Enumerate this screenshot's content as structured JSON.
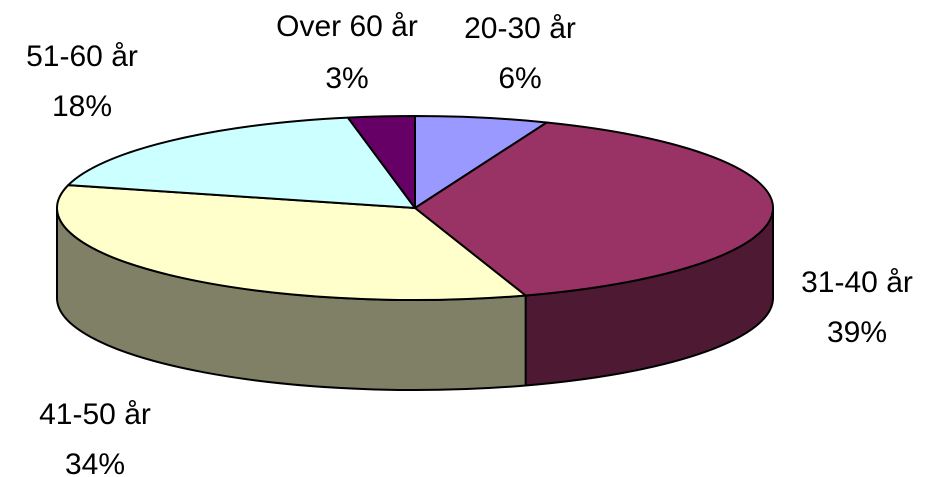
{
  "chart_data": {
    "type": "pie",
    "title": "",
    "style": "3d-exploded-none",
    "slices": [
      {
        "label": "20-30 år",
        "value": 6,
        "pct_label": "6%",
        "color": "#9999FF",
        "side_color": "#5C5C99"
      },
      {
        "label": "31-40 år",
        "value": 39,
        "pct_label": "39%",
        "color": "#993366",
        "side_color": "#4E1A33"
      },
      {
        "label": "41-50 år",
        "value": 34,
        "pct_label": "34%",
        "color": "#FFFFCC",
        "side_color": "#808066"
      },
      {
        "label": "51-60 år",
        "value": 18,
        "pct_label": "18%",
        "color": "#CCFFFF",
        "side_color": "#668080"
      },
      {
        "label": "Over 60 år",
        "value": 3,
        "pct_label": "3%",
        "color": "#660066",
        "side_color": "#330033"
      }
    ]
  }
}
